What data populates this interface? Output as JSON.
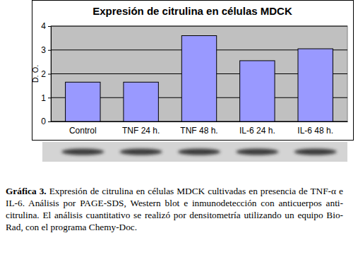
{
  "chart_data": {
    "type": "bar",
    "title": "Expresión de citrulina en células MDCK",
    "y_label": "D. O.",
    "categories": [
      "Control",
      "TNF 24 h.",
      "TNF 48 h.",
      "IL-6 24 h.",
      "IL-6 48 h."
    ],
    "values": [
      1.65,
      1.65,
      3.6,
      2.55,
      3.05
    ],
    "color": "#9999ff",
    "ylim": [
      0,
      4
    ],
    "yticks": [
      0,
      1,
      2,
      3,
      4
    ],
    "grid": true,
    "annotations": [
      "Gráfica 3.",
      "Expresión de citrulina en células MDCK cultivadas en presencia de TNF-α e IL-6. Análisis por PAGE-SDS, Western blot e inmunodetección con anticuerpos anti-citrulina. El análisis cuantitativo se realizó por densitometría utilizando un equipo Bio-Rad, con el programa Chemy-Doc."
    ]
  }
}
